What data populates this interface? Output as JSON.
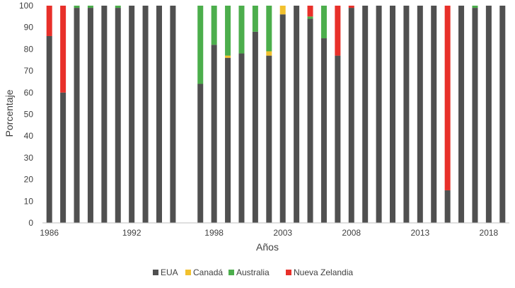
{
  "chart_data": {
    "type": "bar",
    "stacked": true,
    "xlabel": "Años",
    "ylabel": "Porcentaje",
    "ylim": [
      0,
      100
    ],
    "y_ticks": [
      0,
      10,
      20,
      30,
      40,
      50,
      60,
      70,
      80,
      90,
      100
    ],
    "x_tick_labels": [
      "1986",
      "1992",
      "1998",
      "2003",
      "2008",
      "2013",
      "2018"
    ],
    "grid": false,
    "legend_position": "bottom",
    "categories": [
      1986,
      1987,
      1988,
      1989,
      1990,
      1991,
      1992,
      1993,
      1994,
      1995,
      1996,
      1997,
      1998,
      1999,
      2000,
      2001,
      2002,
      2003,
      2004,
      2005,
      2006,
      2007,
      2008,
      2009,
      2010,
      2011,
      2012,
      2013,
      2014,
      2015,
      2016,
      2017,
      2018,
      2019
    ],
    "series": [
      {
        "name": "EUA",
        "color": "#505050",
        "values": [
          86,
          60,
          99,
          99,
          100,
          99,
          100,
          100,
          100,
          100,
          0,
          64,
          82,
          76,
          78,
          88,
          77,
          96,
          100,
          94,
          85,
          77,
          99,
          100,
          100,
          100,
          100,
          100,
          100,
          15,
          100,
          99,
          100,
          100
        ]
      },
      {
        "name": "Canadá",
        "color": "#f2c12e",
        "values": [
          0,
          0,
          0,
          0,
          0,
          0,
          0,
          0,
          0,
          0,
          0,
          0,
          0,
          1,
          0,
          0,
          2,
          4,
          0,
          0,
          0,
          0,
          0,
          0,
          0,
          0,
          0,
          0,
          0,
          0,
          0,
          0,
          0,
          0
        ]
      },
      {
        "name": "Australia",
        "color": "#4cae4c",
        "values": [
          0,
          0,
          1,
          1,
          0,
          1,
          0,
          0,
          0,
          0,
          0,
          36,
          18,
          23,
          22,
          12,
          21,
          0,
          0,
          1,
          15,
          0,
          0,
          0,
          0,
          0,
          0,
          0,
          0,
          0,
          0,
          1,
          0,
          0
        ]
      },
      {
        "name": "Nueva Zelandia",
        "color": "#e8302a",
        "values": [
          14,
          40,
          0,
          0,
          0,
          0,
          0,
          0,
          0,
          0,
          0,
          0,
          0,
          0,
          0,
          0,
          0,
          0,
          0,
          5,
          0,
          23,
          1,
          0,
          0,
          0,
          0,
          0,
          0,
          85,
          0,
          0,
          0,
          0
        ]
      }
    ]
  }
}
